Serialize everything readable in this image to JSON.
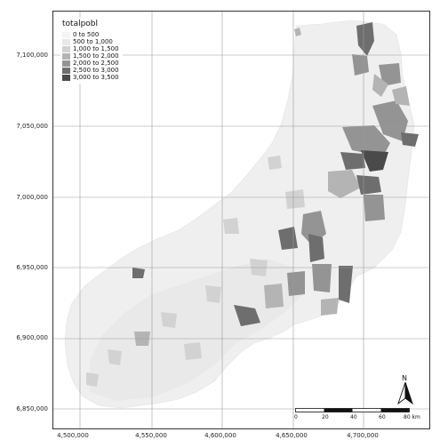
{
  "legend": {
    "title": "totalpobl",
    "items": [
      {
        "label": "0 to 500",
        "color": "#f4f4f4"
      },
      {
        "label": "500 to 1,000",
        "color": "#e8e8e8"
      },
      {
        "label": "1,000 to 1,500",
        "color": "#d2d2d2"
      },
      {
        "label": "1,500 to 2,000",
        "color": "#b4b4b4"
      },
      {
        "label": "2,000 to 2,500",
        "color": "#949494"
      },
      {
        "label": "2,500 to 3,000",
        "color": "#6e6e6e"
      },
      {
        "label": "3,000 to 3,500",
        "color": "#4a4a4a"
      }
    ]
  },
  "axes": {
    "y_ticks": [
      "7,100,000",
      "7,050,000",
      "7,000,000",
      "6,950,000",
      "6,900,000",
      "6,850,000"
    ],
    "x_ticks": [
      "4,500,000",
      "4,550,000",
      "4,600,000",
      "4,650,000",
      "4,700,000"
    ]
  },
  "scalebar": {
    "labels": [
      "0",
      "20",
      "40",
      "60",
      "80 km"
    ]
  },
  "north_arrow": {
    "letter": "N",
    "icon": "north-arrow-icon"
  },
  "colors": {
    "grid": "#9a9a9a",
    "region_base": "#f0f0f0"
  }
}
